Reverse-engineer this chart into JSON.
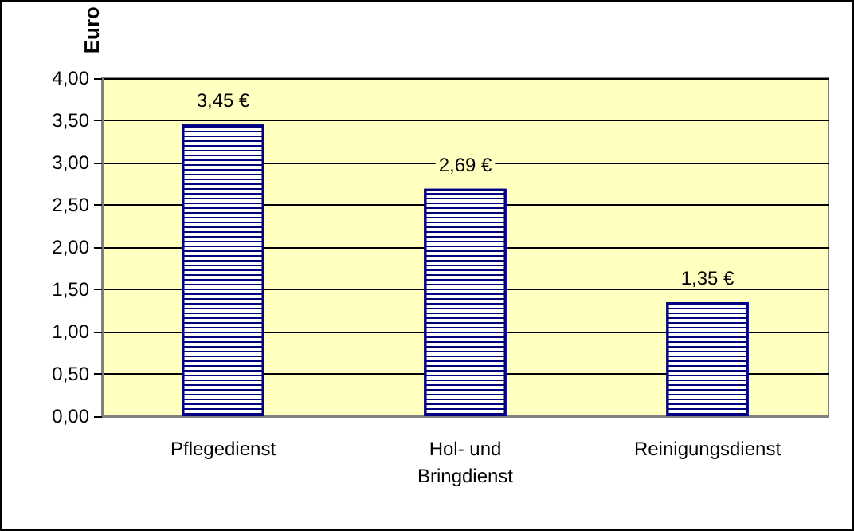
{
  "chart_data": {
    "type": "bar",
    "ylabel": "Euro",
    "categories": [
      "Pflegedienst",
      "Hol- und\nBringdienst",
      "Reinigungsdienst"
    ],
    "values": [
      3.45,
      2.69,
      1.35
    ],
    "value_labels": [
      "3,45 €",
      "2,69 €",
      "1,35 €"
    ],
    "color": "#000080",
    "ylim": [
      0,
      4
    ],
    "yticks": [
      {
        "value": 0,
        "label": "0,00"
      },
      {
        "value": 0.5,
        "label": "0,50"
      },
      {
        "value": 1,
        "label": "1,00"
      },
      {
        "value": 1.5,
        "label": "1,50"
      },
      {
        "value": 2,
        "label": "2,00"
      },
      {
        "value": 2.5,
        "label": "2,50"
      },
      {
        "value": 3,
        "label": "3,00"
      },
      {
        "value": 3.5,
        "label": "3,50"
      },
      {
        "value": 4,
        "label": "4,00"
      }
    ],
    "grid": "y"
  }
}
